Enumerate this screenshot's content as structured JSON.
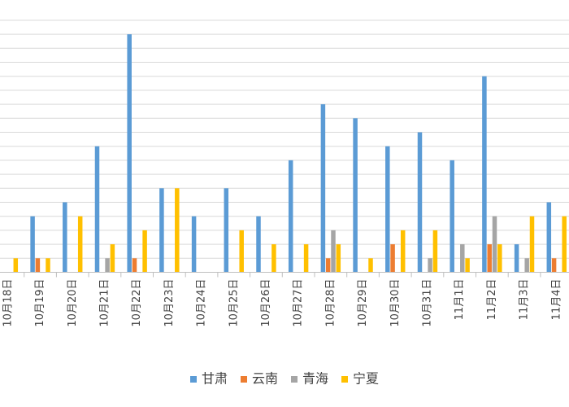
{
  "chart_data": {
    "type": "bar",
    "categories": [
      "10月18日",
      "10月19日",
      "10月20日",
      "10月21日",
      "10月22日",
      "10月23日",
      "10月24日",
      "10月25日",
      "10月26日",
      "10月27日",
      "10月28日",
      "10月29日",
      "10月30日",
      "10月31日",
      "11月1日",
      "11月2日",
      "11月3日",
      "11月4日"
    ],
    "series": [
      {
        "name": "甘肃",
        "color": "#5B9BD5",
        "values": [
          null,
          4,
          5,
          9,
          17,
          6,
          4,
          6,
          4,
          8,
          12,
          11,
          9,
          10,
          8,
          14,
          2,
          5
        ]
      },
      {
        "name": "云南",
        "color": "#ED7D31",
        "values": [
          null,
          1,
          0,
          0,
          1,
          0,
          0,
          0,
          0,
          0,
          1,
          0,
          2,
          0,
          0,
          2,
          0,
          1
        ]
      },
      {
        "name": "青海",
        "color": "#A5A5A5",
        "values": [
          null,
          0,
          0,
          1,
          0,
          0,
          0,
          0,
          0,
          0,
          3,
          0,
          0,
          1,
          2,
          4,
          1,
          0
        ]
      },
      {
        "name": "宁夏",
        "color": "#FFC000",
        "values": [
          1,
          1,
          4,
          2,
          3,
          6,
          0,
          3,
          2,
          2,
          2,
          1,
          3,
          3,
          1,
          2,
          4,
          4
        ]
      }
    ],
    "ylim": [
      0,
      18
    ],
    "ytick_step": 1,
    "grid": true,
    "legend_position": "bottom"
  }
}
